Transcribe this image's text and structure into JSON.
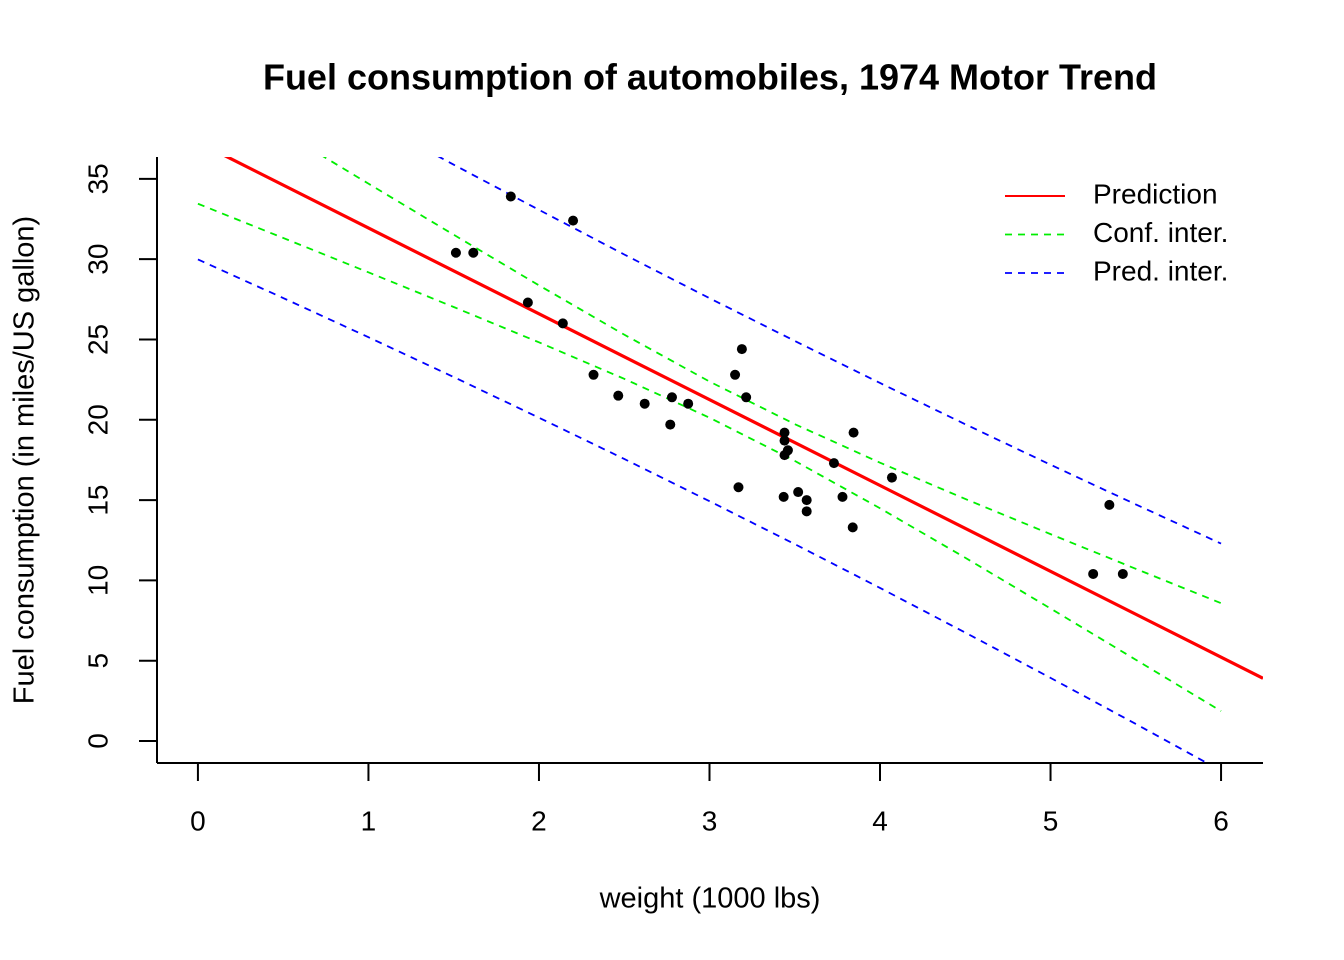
{
  "chart_data": {
    "type": "scatter",
    "title": "Fuel consumption of automobiles, 1974 Motor Trend",
    "x_label": "weight (1000 lbs)",
    "y_label": "Fuel consumption (in miles/US gallon)",
    "xlim": [
      -0.24,
      6.246
    ],
    "ylim": [
      -1.37,
      36.36
    ],
    "xticks": [
      0,
      1,
      2,
      3,
      4,
      5,
      6
    ],
    "yticks": [
      0,
      5,
      10,
      15,
      20,
      25,
      30,
      35
    ],
    "legend": "topright",
    "points": {
      "color": "#000000",
      "x": [
        2.62,
        2.875,
        2.32,
        3.215,
        3.44,
        3.46,
        3.57,
        3.19,
        3.15,
        3.44,
        3.44,
        4.07,
        3.73,
        3.78,
        5.25,
        5.424,
        5.345,
        2.2,
        1.615,
        1.835,
        2.465,
        3.52,
        3.435,
        3.84,
        3.845,
        1.935,
        2.14,
        1.513,
        3.17,
        2.77,
        3.57,
        2.78
      ],
      "values": [
        21.0,
        21.0,
        22.8,
        21.4,
        18.7,
        18.1,
        14.3,
        24.4,
        22.8,
        19.2,
        17.8,
        16.4,
        17.3,
        15.2,
        10.4,
        10.4,
        14.7,
        32.4,
        30.4,
        33.9,
        21.5,
        15.5,
        15.2,
        13.3,
        19.2,
        27.3,
        26.0,
        30.4,
        15.8,
        19.7,
        15.0,
        21.4
      ]
    },
    "series": [
      {
        "name": "Prediction",
        "color": "#ff0000",
        "dashed": false,
        "x": [
          0,
          6.246
        ],
        "values": [
          37.285,
          3.906
        ]
      },
      {
        "name": "Conf. inter.",
        "color": "#00ee00",
        "dashed": true,
        "x": [
          0,
          0.5,
          1,
          1.5,
          2,
          2.5,
          3,
          3.5,
          4,
          4.5,
          5,
          5.5,
          6
        ],
        "values": [
          33.45,
          31.32,
          29.18,
          27.02,
          24.82,
          22.55,
          20.13,
          17.44,
          14.49,
          11.41,
          8.25,
          5.06,
          1.86
        ],
        "values_upper": [
          41.12,
          37.9,
          34.7,
          31.52,
          28.37,
          25.3,
          22.38,
          19.73,
          17.33,
          15.07,
          12.88,
          10.72,
          8.58
        ]
      },
      {
        "name": "Pred. inter.",
        "color": "#0000ff",
        "dashed": true,
        "x": [
          0,
          0.5,
          1,
          1.5,
          2,
          2.5,
          3,
          3.5,
          4,
          4.5,
          5,
          5.5,
          6
        ],
        "values": [
          29.98,
          27.58,
          25.14,
          22.66,
          20.13,
          17.56,
          14.93,
          12.26,
          9.53,
          6.75,
          3.93,
          1.06,
          -1.85
        ],
        "values_upper": [
          44.59,
          41.65,
          38.75,
          35.88,
          33.07,
          30.29,
          27.57,
          24.91,
          22.29,
          19.72,
          17.2,
          14.73,
          12.29
        ]
      }
    ]
  }
}
